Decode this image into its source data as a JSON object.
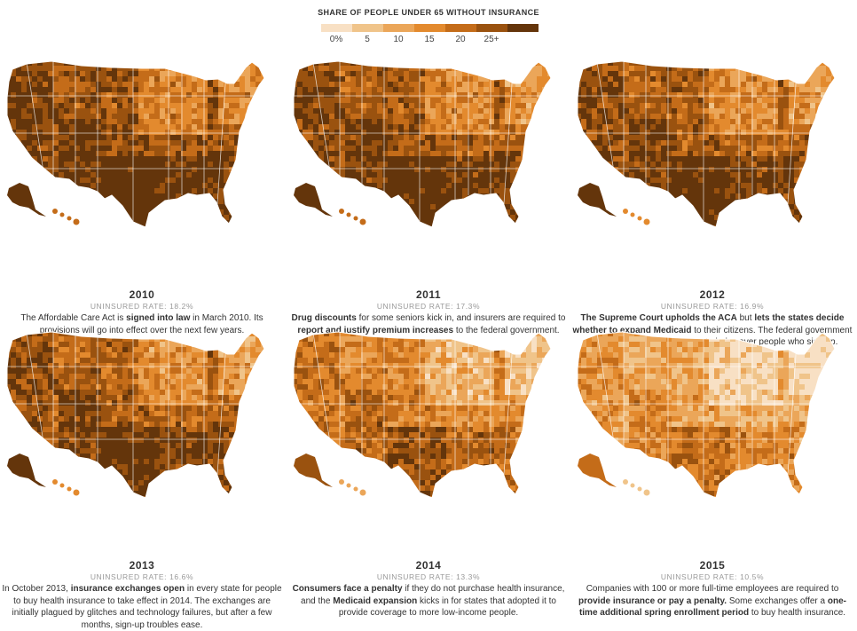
{
  "legend": {
    "title": "SHARE OF PEOPLE UNDER 65 WITHOUT INSURANCE",
    "labels": [
      "0%",
      "5",
      "10",
      "15",
      "20",
      "25+"
    ],
    "colors": [
      "#f8e0c4",
      "#f0c48a",
      "#eba659",
      "#e38a2e",
      "#c46c19",
      "#9a520f",
      "#64350b"
    ]
  },
  "panels": [
    {
      "year": "2010",
      "rate": "UNINSURED RATE: 18.2%",
      "level": 0.78,
      "desc": [
        {
          "t": "The Affordable Care Act is ",
          "b": false
        },
        {
          "t": "signed into law",
          "b": true
        },
        {
          "t": " in March 2010. Its provisions will go into effect over the next few years.",
          "b": false
        }
      ]
    },
    {
      "year": "2011",
      "rate": "UNINSURED RATE: 17.3%",
      "level": 0.74,
      "desc": [
        {
          "t": "Drug discounts",
          "b": true
        },
        {
          "t": " for some seniors kick in, and insurers are required to ",
          "b": false
        },
        {
          "t": "report and justify premium increases",
          "b": true
        },
        {
          "t": " to the federal government.",
          "b": false
        }
      ]
    },
    {
      "year": "2012",
      "rate": "UNINSURED RATE: 16.9%",
      "level": 0.72,
      "desc": [
        {
          "t": "The Supreme Court upholds the ACA",
          "b": true
        },
        {
          "t": " but ",
          "b": false
        },
        {
          "t": "lets the states decide whether to expand Medicaid",
          "b": true
        },
        {
          "t": " to their citizens. The federal government offers a lot of money to states to help cover people who sign up.",
          "b": false
        }
      ]
    },
    {
      "year": "2013",
      "rate": "UNINSURED RATE: 16.6%",
      "level": 0.7,
      "desc": [
        {
          "t": "In October 2013, ",
          "b": false
        },
        {
          "t": "insurance exchanges open",
          "b": true
        },
        {
          "t": " in every state for people to buy health insurance to take effect in 2014. The exchanges are initially plagued by glitches and technology failures, but after a few months, sign-up troubles ease.",
          "b": false
        }
      ]
    },
    {
      "year": "2014",
      "rate": "UNINSURED RATE: 13.3%",
      "level": 0.52,
      "desc": [
        {
          "t": "Consumers face a penalty",
          "b": true
        },
        {
          "t": " if they do not purchase health insurance, and the ",
          "b": false
        },
        {
          "t": "Medicaid expansion",
          "b": true
        },
        {
          "t": " kicks in for states that adopted it to provide coverage to more low-income people.",
          "b": false
        }
      ]
    },
    {
      "year": "2015",
      "rate": "UNINSURED RATE: 10.5%",
      "level": 0.36,
      "desc": [
        {
          "t": "Companies with 100 or more full-time employees are required to ",
          "b": false
        },
        {
          "t": "provide insurance or pay a penalty.",
          "b": true
        },
        {
          "t": " Some exchanges offer a ",
          "b": false
        },
        {
          "t": "one-time additional spring enrollment period",
          "b": true
        },
        {
          "t": " to buy health insurance.",
          "b": false
        }
      ]
    }
  ]
}
